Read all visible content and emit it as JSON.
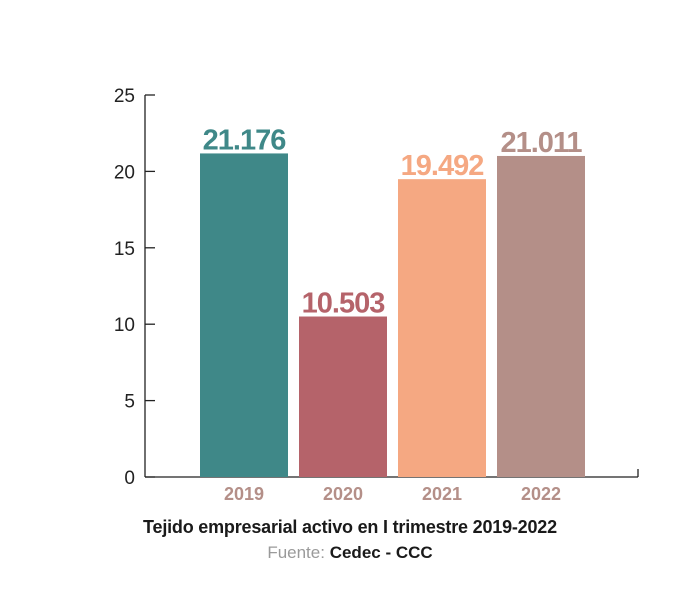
{
  "chart_data": {
    "type": "bar",
    "categories": [
      "2019",
      "2020",
      "2021",
      "2022"
    ],
    "values": [
      21.176,
      10.503,
      19.492,
      21.011
    ],
    "value_labels": [
      "21.176",
      "10.503",
      "19.492",
      "21.011"
    ],
    "colors": [
      "#3f8888",
      "#b5636a",
      "#f5a882",
      "#b48f88"
    ],
    "category_label_color": "#b48f88",
    "ylim": [
      0,
      25
    ],
    "yticks": [
      0,
      5,
      10,
      15,
      20,
      25
    ],
    "grid": false,
    "legend": "none"
  },
  "caption": {
    "title": "Tejido empresarial activo en I trimestre 2019-2022",
    "source_label": "Fuente:",
    "source_value": "Cedec - CCC"
  }
}
